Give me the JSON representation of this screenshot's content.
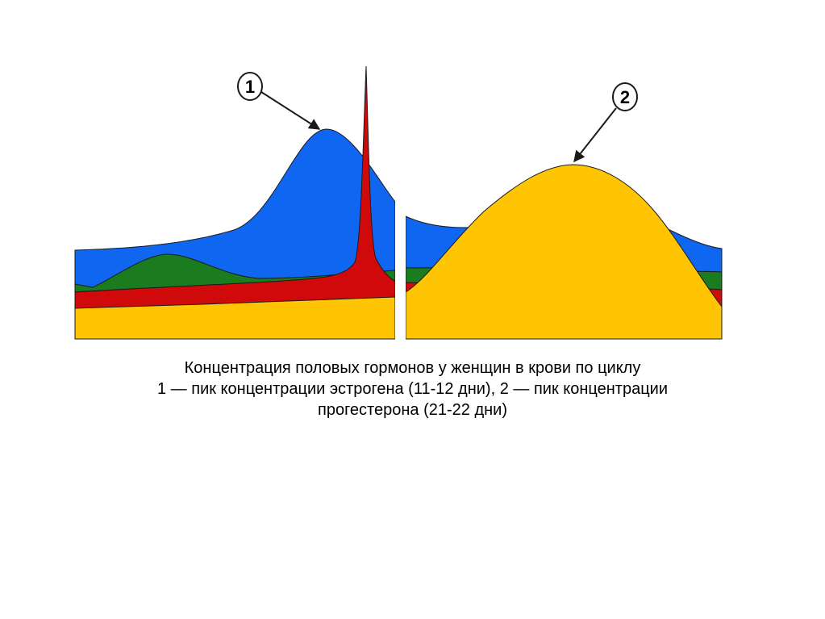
{
  "figure": {
    "markers": [
      {
        "label": "1"
      },
      {
        "label": "2"
      }
    ],
    "colors": {
      "blue_layer": "#0f67f1",
      "green_layer": "#1b7b1f",
      "red_layer": "#d00a0a",
      "yellow_layer": "#ffc505",
      "outline": "#1a1a1a",
      "divider": "#ffffff"
    }
  },
  "caption": {
    "line1": "Концентрация половых гормонов у женщин в крови по циклу",
    "line2": "1 — пик концентрации эстрогена (11-12 дни), 2 — пик концентрации",
    "line3": "прогестерона (21-22 дни)"
  }
}
